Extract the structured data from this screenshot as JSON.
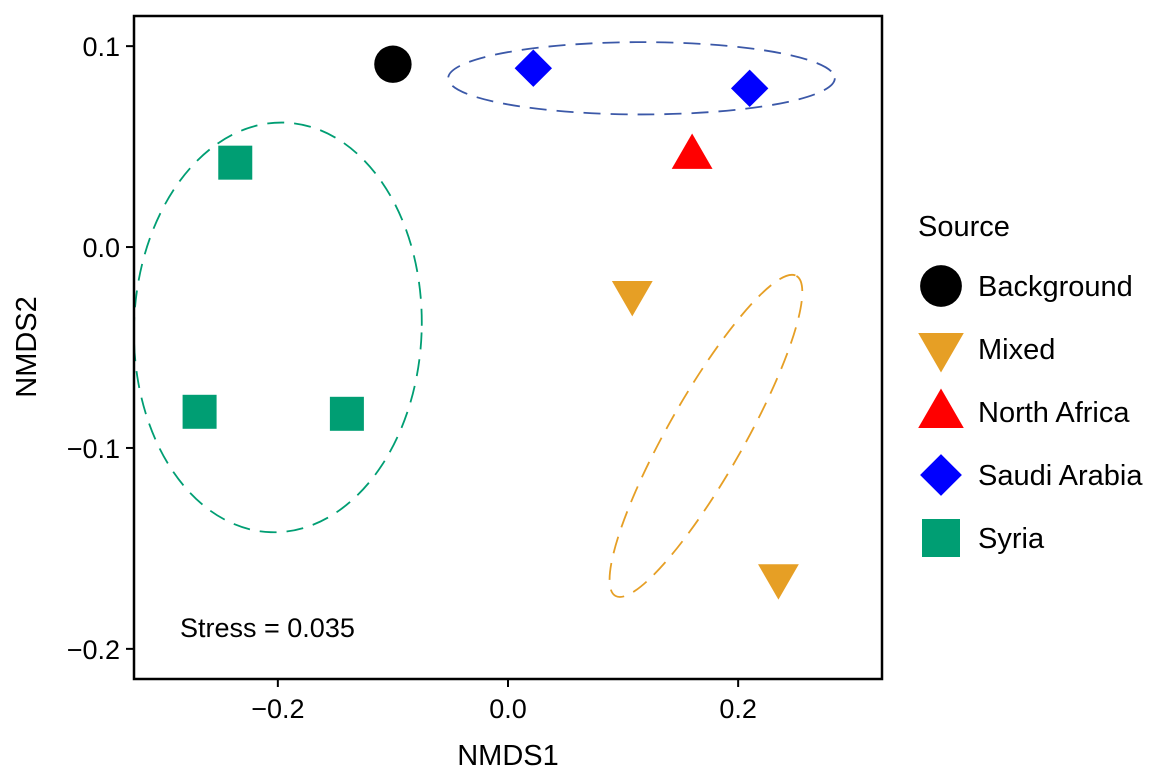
{
  "chart_data": {
    "type": "scatter",
    "title": "",
    "xlabel": "NMDS1",
    "ylabel": "NMDS2",
    "xlim": [
      -0.325,
      0.325
    ],
    "ylim": [
      -0.215,
      0.115
    ],
    "x_ticks": [
      -0.2,
      0.0,
      0.2
    ],
    "x_tick_labels": [
      "−0.2",
      "0.0",
      "0.2"
    ],
    "y_ticks": [
      0.1,
      0.0,
      -0.1,
      -0.2
    ],
    "y_tick_labels": [
      "0.1",
      "0.0",
      "−0.1",
      "−0.2"
    ],
    "grid": false,
    "legend": {
      "title": "Source",
      "position": "right"
    },
    "annotation": "Stress = 0.035",
    "series": [
      {
        "name": "Background",
        "marker": "circle",
        "color": "#000000",
        "points": [
          {
            "x": -0.1,
            "y": 0.091
          }
        ]
      },
      {
        "name": "Mixed",
        "marker": "triangle-down",
        "color": "#E69F25",
        "points": [
          {
            "x": 0.108,
            "y": -0.024
          },
          {
            "x": 0.235,
            "y": -0.165
          }
        ]
      },
      {
        "name": "North Africa",
        "marker": "triangle-up",
        "color": "#FF0000",
        "points": [
          {
            "x": 0.16,
            "y": 0.046
          }
        ]
      },
      {
        "name": "Saudi Arabia",
        "marker": "diamond",
        "color": "#0000FF",
        "points": [
          {
            "x": 0.022,
            "y": 0.089
          },
          {
            "x": 0.21,
            "y": 0.079
          }
        ]
      },
      {
        "name": "Syria",
        "marker": "square",
        "color": "#009E73",
        "points": [
          {
            "x": -0.237,
            "y": 0.042
          },
          {
            "x": -0.268,
            "y": -0.082
          },
          {
            "x": -0.14,
            "y": -0.083
          }
        ]
      }
    ],
    "ellipses": [
      {
        "series": "Syria",
        "color": "#009E73",
        "center": [
          -0.2,
          -0.04
        ],
        "radius_x": 0.125,
        "radius_y": 0.102,
        "rotation": 2
      },
      {
        "series": "Saudi Arabia",
        "color": "#3B58A8",
        "center": [
          0.116,
          0.084
        ],
        "radius_x": 0.168,
        "radius_y": 0.018,
        "rotation": 0
      },
      {
        "series": "Mixed",
        "color": "#E69F25",
        "center": [
          0.172,
          -0.094
        ],
        "radius_x": 0.1,
        "radius_y": 0.027,
        "rotation": -60.5
      }
    ]
  }
}
